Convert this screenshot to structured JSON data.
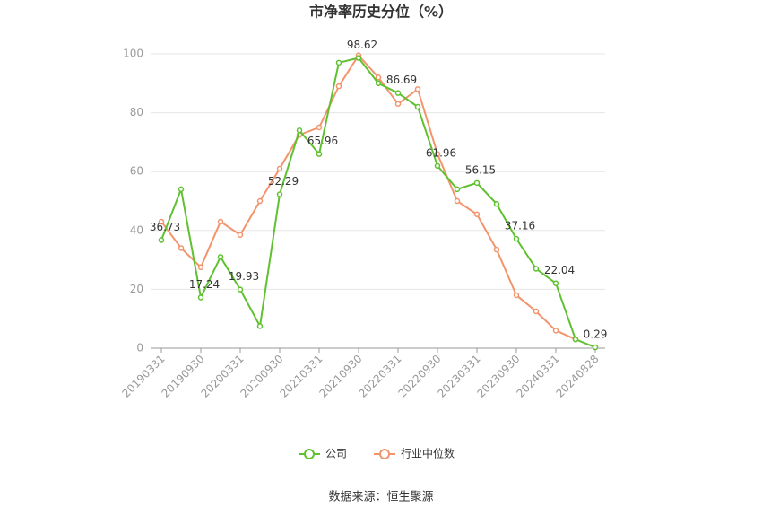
{
  "chart_data": {
    "type": "line",
    "title": "市净率历史分位（%）",
    "source": "数据来源：恒生聚源",
    "categories": [
      "20190331",
      null,
      "20190930",
      null,
      "20200331",
      null,
      "20200930",
      null,
      "20210331",
      null,
      "20210930",
      null,
      "20220331",
      null,
      "20220930",
      null,
      "20230331",
      null,
      "20230930",
      null,
      "20240331",
      null,
      "20240828"
    ],
    "series": [
      {
        "name": "公司",
        "color": "#5fc130",
        "values": [
          36.73,
          54,
          17.24,
          31,
          19.93,
          7.5,
          52.29,
          74,
          65.96,
          97,
          98.62,
          90,
          86.69,
          82,
          61.96,
          54,
          56.15,
          49,
          37.16,
          27,
          22.04,
          3,
          0.29
        ]
      },
      {
        "name": "行业中位数",
        "color": "#f2946c",
        "values": [
          43,
          34,
          27.5,
          43,
          38.5,
          50,
          61,
          72.5,
          75,
          89,
          99.5,
          92,
          83,
          88,
          66,
          50,
          45.5,
          33.5,
          18,
          12.5,
          6,
          3,
          null
        ]
      }
    ],
    "ylim": [
      0,
      100
    ],
    "yticks": [
      0,
      20,
      40,
      60,
      80,
      100
    ],
    "grid": true,
    "legend": "bottom"
  }
}
